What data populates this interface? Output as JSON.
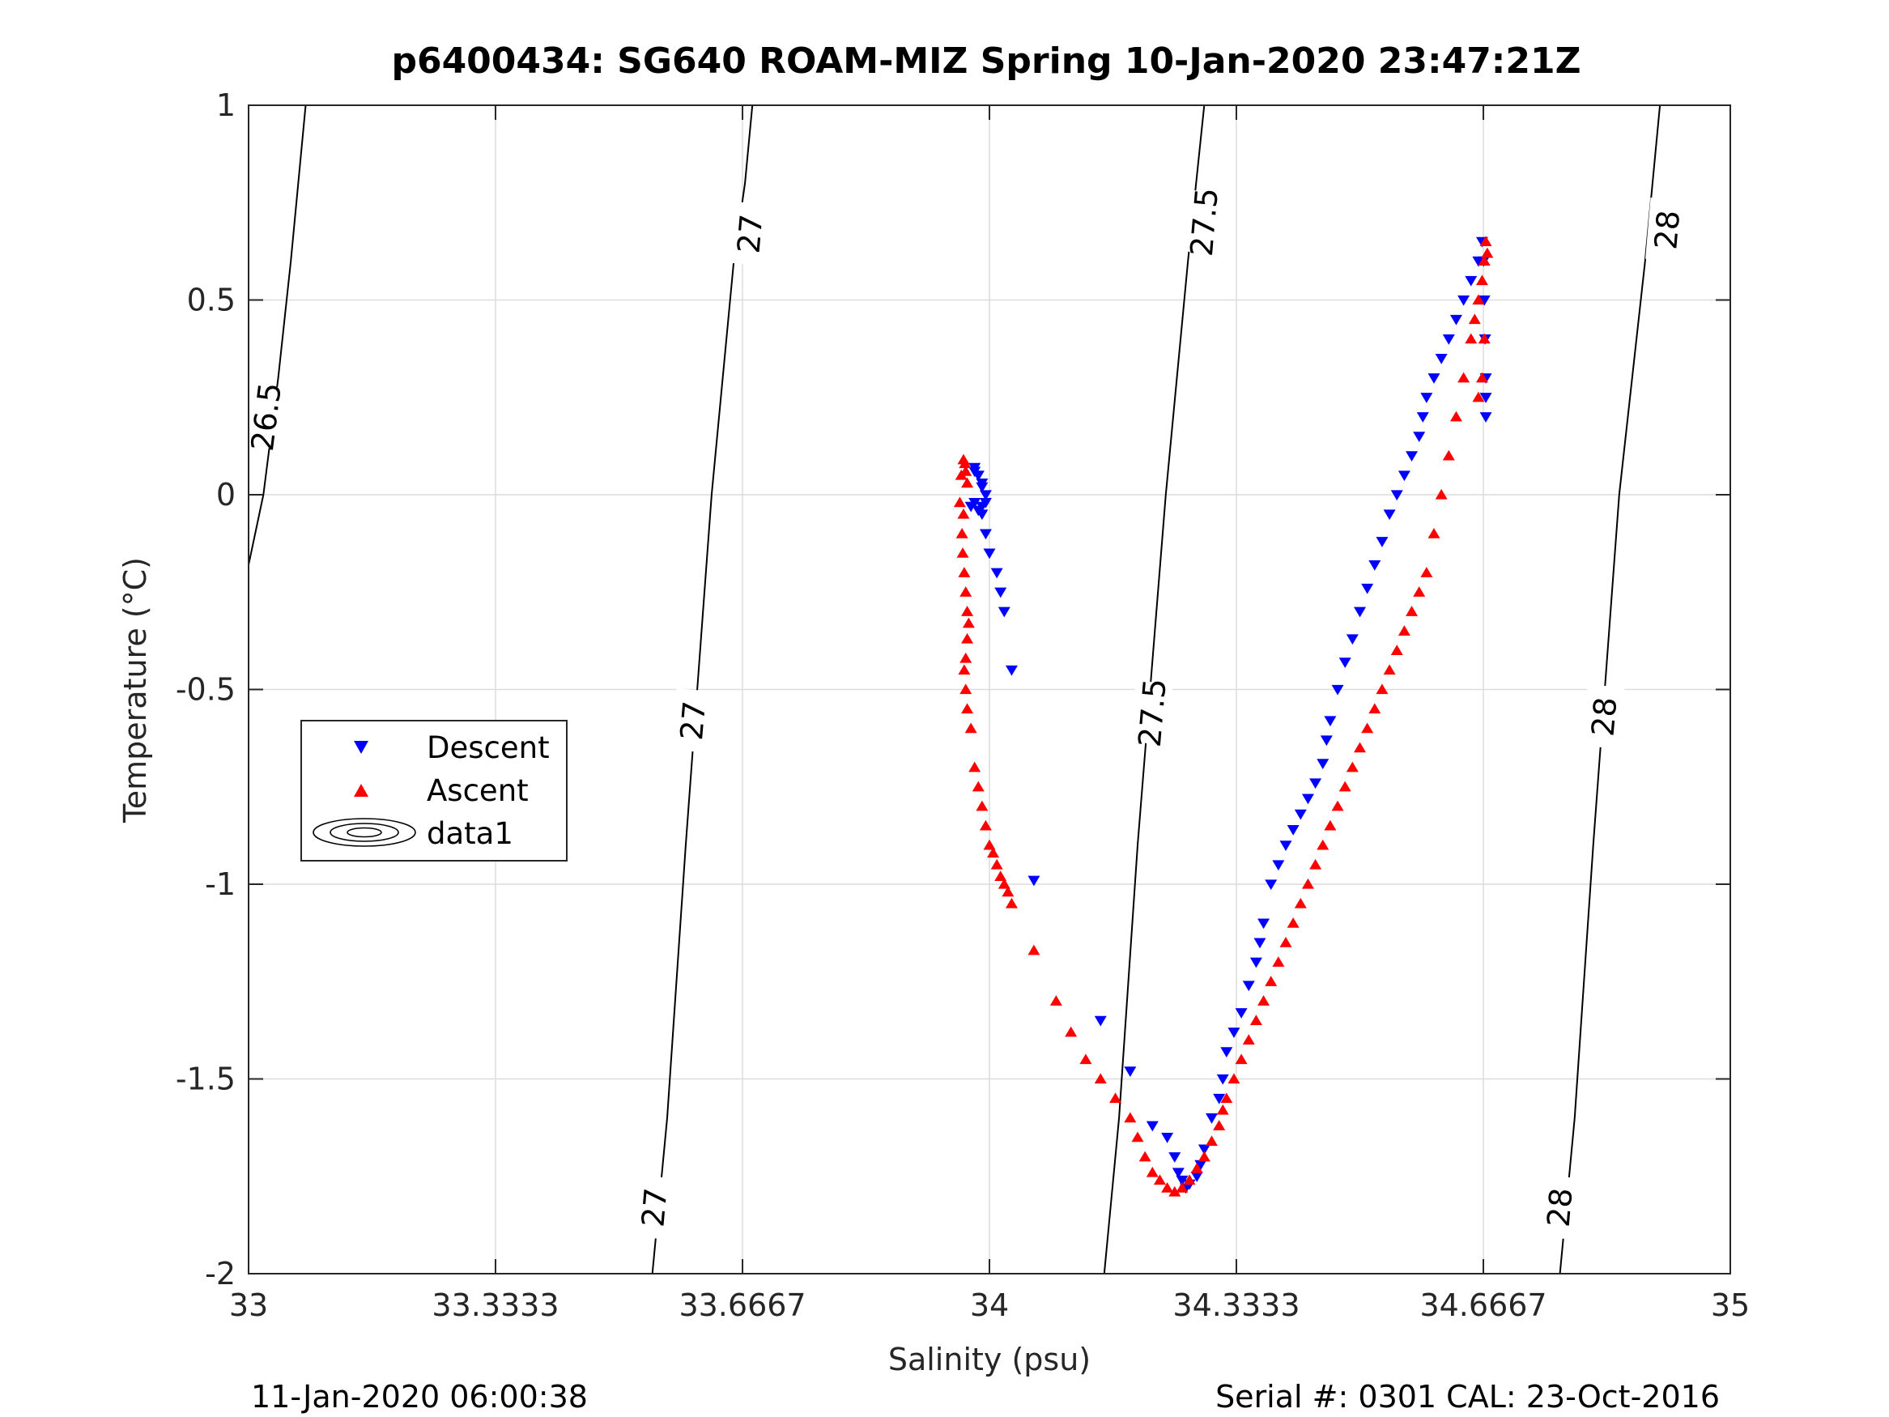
{
  "chart_data": {
    "type": "scatter",
    "title": "p6400434: SG640 ROAM-MIZ Spring 10-Jan-2020 23:47:21Z",
    "xlabel": "Salinity (psu)",
    "ylabel": "Temperature (°C)",
    "xlim": [
      33,
      35
    ],
    "ylim": [
      -2,
      1
    ],
    "xticks": [
      33,
      33.3333,
      33.6667,
      34,
      34.3333,
      34.6667,
      35
    ],
    "xtick_labels": [
      "33",
      "33.3333",
      "33.6667",
      "34",
      "34.3333",
      "34.6667",
      "35"
    ],
    "yticks": [
      -2,
      -1.5,
      -1,
      -0.5,
      0,
      0.5,
      1
    ],
    "ytick_labels": [
      "-2",
      "-1.5",
      "-1",
      "-0.5",
      "0",
      "0.5",
      "1"
    ],
    "grid": true,
    "legend_placement": "middle-left",
    "legend": [
      {
        "name": "Descent",
        "marker": "down-triangle",
        "color": "#0000ff"
      },
      {
        "name": "Ascent",
        "marker": "up-triangle",
        "color": "#ff0000"
      },
      {
        "name": "data1",
        "marker": "contour",
        "color": "#000000"
      }
    ],
    "series": [
      {
        "name": "Descent",
        "color": "#0000ff",
        "marker": "down-triangle",
        "x": [
          33.98,
          33.985,
          33.99,
          33.995,
          33.98,
          33.975,
          33.985,
          33.99,
          33.995,
          33.99,
          33.985,
          33.98,
          33.99,
          33.995,
          34.0,
          34.01,
          34.015,
          34.02,
          34.03,
          34.06,
          34.15,
          34.19,
          34.22,
          34.24,
          34.25,
          34.255,
          34.26,
          34.265,
          34.27,
          34.28,
          34.285,
          34.29,
          34.3,
          34.31,
          34.315,
          34.32,
          34.33,
          34.34,
          34.35,
          34.36,
          34.365,
          34.37,
          34.38,
          34.39,
          34.4,
          34.41,
          34.42,
          34.43,
          34.44,
          34.45,
          34.455,
          34.46,
          34.47,
          34.48,
          34.49,
          34.5,
          34.51,
          34.52,
          34.53,
          34.54,
          34.55,
          34.56,
          34.57,
          34.58,
          34.585,
          34.59,
          34.6,
          34.61,
          34.62,
          34.63,
          34.64,
          34.65,
          34.66,
          34.665,
          34.667,
          34.668,
          34.669,
          34.67,
          34.67,
          34.67
        ],
        "y": [
          0.07,
          0.05,
          0.03,
          0.0,
          -0.02,
          -0.03,
          -0.04,
          -0.05,
          -0.02,
          0.02,
          0.05,
          0.06,
          -0.03,
          -0.1,
          -0.15,
          -0.2,
          -0.25,
          -0.3,
          -0.45,
          -0.99,
          -1.35,
          -1.48,
          -1.62,
          -1.65,
          -1.7,
          -1.74,
          -1.76,
          -1.78,
          -1.77,
          -1.75,
          -1.72,
          -1.68,
          -1.6,
          -1.55,
          -1.5,
          -1.43,
          -1.38,
          -1.33,
          -1.26,
          -1.2,
          -1.15,
          -1.1,
          -1.0,
          -0.95,
          -0.9,
          -0.86,
          -0.82,
          -0.78,
          -0.74,
          -0.69,
          -0.63,
          -0.58,
          -0.5,
          -0.43,
          -0.37,
          -0.3,
          -0.24,
          -0.18,
          -0.12,
          -0.05,
          0.0,
          0.05,
          0.1,
          0.15,
          0.2,
          0.25,
          0.3,
          0.35,
          0.4,
          0.45,
          0.5,
          0.55,
          0.6,
          0.65,
          0.6,
          0.5,
          0.4,
          0.3,
          0.25,
          0.2
        ]
      },
      {
        "name": "Ascent",
        "color": "#ff0000",
        "marker": "up-triangle",
        "x": [
          33.96,
          33.962,
          33.965,
          33.967,
          33.968,
          33.97,
          33.965,
          33.963,
          33.964,
          33.966,
          33.968,
          33.97,
          33.972,
          33.97,
          33.968,
          33.966,
          33.968,
          33.97,
          33.975,
          33.98,
          33.985,
          33.99,
          33.995,
          34.0,
          34.005,
          34.01,
          34.015,
          34.02,
          34.025,
          34.03,
          34.06,
          34.09,
          34.11,
          34.13,
          34.15,
          34.17,
          34.19,
          34.2,
          34.21,
          34.22,
          34.23,
          34.24,
          34.25,
          34.26,
          34.27,
          34.28,
          34.29,
          34.3,
          34.31,
          34.315,
          34.32,
          34.33,
          34.34,
          34.35,
          34.36,
          34.37,
          34.38,
          34.39,
          34.4,
          34.41,
          34.42,
          34.43,
          34.44,
          34.45,
          34.46,
          34.47,
          34.48,
          34.49,
          34.5,
          34.51,
          34.52,
          34.53,
          34.54,
          34.55,
          34.56,
          34.57,
          34.58,
          34.59,
          34.6,
          34.61,
          34.62,
          34.63,
          34.64,
          34.65,
          34.655,
          34.66,
          34.665,
          34.668,
          34.67,
          34.672,
          34.668,
          34.665,
          34.66
        ],
        "y": [
          -0.02,
          0.05,
          0.09,
          0.08,
          0.06,
          0.03,
          -0.05,
          -0.1,
          -0.15,
          -0.2,
          -0.25,
          -0.3,
          -0.33,
          -0.37,
          -0.42,
          -0.45,
          -0.5,
          -0.55,
          -0.6,
          -0.7,
          -0.75,
          -0.8,
          -0.85,
          -0.9,
          -0.92,
          -0.95,
          -0.98,
          -1.0,
          -1.02,
          -1.05,
          -1.17,
          -1.3,
          -1.38,
          -1.45,
          -1.5,
          -1.55,
          -1.6,
          -1.65,
          -1.7,
          -1.74,
          -1.76,
          -1.78,
          -1.79,
          -1.78,
          -1.76,
          -1.73,
          -1.7,
          -1.66,
          -1.62,
          -1.58,
          -1.55,
          -1.5,
          -1.45,
          -1.4,
          -1.35,
          -1.3,
          -1.25,
          -1.2,
          -1.15,
          -1.1,
          -1.05,
          -1.0,
          -0.95,
          -0.9,
          -0.85,
          -0.8,
          -0.75,
          -0.7,
          -0.65,
          -0.6,
          -0.55,
          -0.5,
          -0.45,
          -0.4,
          -0.35,
          -0.3,
          -0.25,
          -0.2,
          -0.1,
          0.0,
          0.1,
          0.2,
          0.3,
          0.4,
          0.45,
          0.5,
          0.55,
          0.6,
          0.65,
          0.62,
          0.4,
          0.3,
          0.25
        ]
      }
    ],
    "isopycnals": [
      {
        "label": "26.5",
        "points": [
          [
            33.0,
            -0.18
          ],
          [
            33.02,
            0.0
          ],
          [
            33.04,
            0.3
          ],
          [
            33.057,
            0.6
          ],
          [
            33.077,
            1.0
          ]
        ],
        "label_at": [
          33.024,
          0.2
        ]
      },
      {
        "label": "27",
        "points": [
          [
            33.545,
            -2.0
          ],
          [
            33.565,
            -1.6
          ],
          [
            33.59,
            -0.9
          ],
          [
            33.625,
            0.0
          ],
          [
            33.655,
            0.6
          ],
          [
            33.67,
            0.8
          ],
          [
            33.68,
            1.0
          ]
        ],
        "label_at": [
          33.6,
          -0.58
        ],
        "extra_labels": [
          [
            33.548,
            -1.83
          ],
          [
            33.677,
            0.67
          ]
        ]
      },
      {
        "label": "27.5",
        "points": [
          [
            34.155,
            -2.0
          ],
          [
            34.175,
            -1.6
          ],
          [
            34.2,
            -0.9
          ],
          [
            34.238,
            0.0
          ],
          [
            34.268,
            0.6
          ],
          [
            34.29,
            1.0
          ]
        ],
        "label_at": [
          34.22,
          -0.56
        ],
        "extra_labels": [
          [
            34.29,
            0.7
          ]
        ]
      },
      {
        "label": "28",
        "points": [
          [
            34.77,
            -2.0
          ],
          [
            34.79,
            -1.6
          ],
          [
            34.815,
            -0.9
          ],
          [
            34.85,
            0.0
          ],
          [
            34.885,
            0.6
          ],
          [
            34.905,
            1.0
          ]
        ],
        "label_at": [
          34.83,
          -0.57
        ],
        "extra_labels": [
          [
            34.77,
            -1.83
          ],
          [
            34.915,
            0.68
          ]
        ]
      }
    ]
  },
  "footer": {
    "left": "11-Jan-2020 06:00:38",
    "right": "Serial #: 0301  CAL: 23-Oct-2016"
  }
}
